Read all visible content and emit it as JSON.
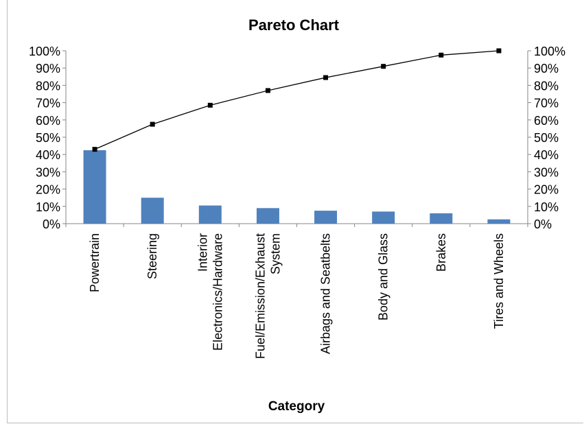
{
  "chart_data": {
    "type": "bar",
    "title": "Pareto Chart",
    "xlabel": "Category",
    "ylabel": "",
    "ylim": [
      0,
      100
    ],
    "y_ticks": [
      "0%",
      "10%",
      "20%",
      "30%",
      "40%",
      "50%",
      "60%",
      "70%",
      "80%",
      "90%",
      "100%"
    ],
    "secondary_y_ticks": [
      "0%",
      "10%",
      "20%",
      "30%",
      "40%",
      "50%",
      "60%",
      "70%",
      "80%",
      "90%",
      "100%"
    ],
    "categories": [
      [
        "Powertrain"
      ],
      [
        "Steering"
      ],
      [
        "Interior",
        "Electronics/Hardware"
      ],
      [
        "Fuel/Emission/Exhaust",
        "System"
      ],
      [
        "Airbags and Seatbelts"
      ],
      [
        "Body and Glass"
      ],
      [
        "Brakes"
      ],
      [
        "Tires and Wheels"
      ]
    ],
    "series": [
      {
        "type": "bar",
        "values": [
          42.5,
          15,
          10.5,
          9,
          7.5,
          7,
          6,
          2.5
        ]
      },
      {
        "type": "line",
        "values": [
          43,
          57.5,
          68.5,
          77,
          84.5,
          91,
          97.5,
          100
        ]
      }
    ],
    "grid": false,
    "legend": "none"
  },
  "colors": {
    "bar": "#4f81bd",
    "line": "#000000",
    "axis": "#868686"
  }
}
